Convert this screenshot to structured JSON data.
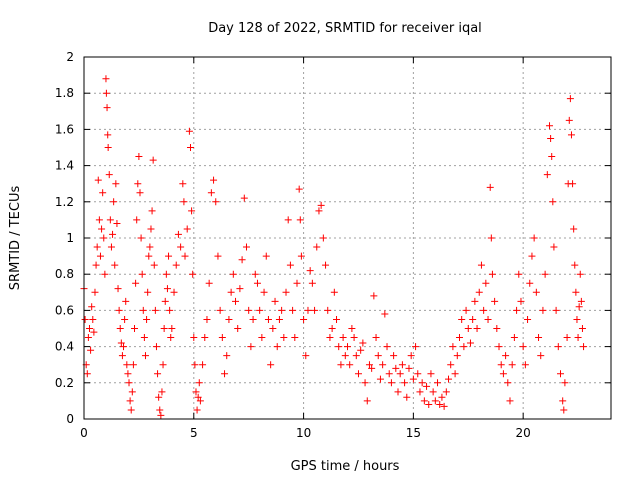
{
  "chart_data": {
    "type": "scatter",
    "title": "Day 128 of 2022, SRMTID for receiver iqal",
    "xlabel": "GPS time / hours",
    "ylabel": "SRMTID / TECUs",
    "xlim": [
      0,
      24
    ],
    "ylim": [
      0,
      2
    ],
    "xticks": [
      0,
      5,
      10,
      15,
      20
    ],
    "yticks": [
      0,
      0.2,
      0.4,
      0.6,
      0.8,
      1,
      1.2,
      1.4,
      1.6,
      1.8,
      2
    ],
    "xtick_labels": [
      "0",
      "5",
      "10",
      "15",
      "20"
    ],
    "ytick_labels": [
      "0",
      "0.2",
      "0.4",
      "0.6",
      "0.8",
      "1",
      "1.2",
      "1.4",
      "1.6",
      "1.8",
      "2"
    ],
    "grid": true,
    "marker": "+",
    "colors": {
      "points": "#ff0000",
      "grid": "#a0a0a0",
      "axes": "#000000"
    },
    "series": [
      {
        "name": "SRMTID",
        "points": [
          [
            0.0,
            0.72
          ],
          [
            0.05,
            0.55
          ],
          [
            0.1,
            0.3
          ],
          [
            0.15,
            0.25
          ],
          [
            0.2,
            0.45
          ],
          [
            0.25,
            0.5
          ],
          [
            0.3,
            0.38
          ],
          [
            0.35,
            0.62
          ],
          [
            0.4,
            0.55
          ],
          [
            0.45,
            0.48
          ],
          [
            0.5,
            0.7
          ],
          [
            0.55,
            0.85
          ],
          [
            0.6,
            0.95
          ],
          [
            0.65,
            1.32
          ],
          [
            0.7,
            1.1
          ],
          [
            0.75,
            0.9
          ],
          [
            0.8,
            1.05
          ],
          [
            0.85,
            1.25
          ],
          [
            0.9,
            1.0
          ],
          [
            0.95,
            0.8
          ],
          [
            1.0,
            1.88
          ],
          [
            1.02,
            1.8
          ],
          [
            1.05,
            1.72
          ],
          [
            1.08,
            1.57
          ],
          [
            1.1,
            1.5
          ],
          [
            1.15,
            1.35
          ],
          [
            1.2,
            1.1
          ],
          [
            1.25,
            0.95
          ],
          [
            1.3,
            1.02
          ],
          [
            1.35,
            1.2
          ],
          [
            1.4,
            0.85
          ],
          [
            1.45,
            1.3
          ],
          [
            1.5,
            1.08
          ],
          [
            1.55,
            0.72
          ],
          [
            1.6,
            0.6
          ],
          [
            1.65,
            0.5
          ],
          [
            1.7,
            0.42
          ],
          [
            1.75,
            0.35
          ],
          [
            1.8,
            0.4
          ],
          [
            1.85,
            0.55
          ],
          [
            1.9,
            0.65
          ],
          [
            1.95,
            0.3
          ],
          [
            2.0,
            0.25
          ],
          [
            2.05,
            0.2
          ],
          [
            2.1,
            0.1
          ],
          [
            2.15,
            0.05
          ],
          [
            2.2,
            0.15
          ],
          [
            2.25,
            0.3
          ],
          [
            2.3,
            0.5
          ],
          [
            2.35,
            0.75
          ],
          [
            2.4,
            1.1
          ],
          [
            2.45,
            1.3
          ],
          [
            2.5,
            1.45
          ],
          [
            2.55,
            1.25
          ],
          [
            2.6,
            1.0
          ],
          [
            2.65,
            0.8
          ],
          [
            2.7,
            0.6
          ],
          [
            2.75,
            0.45
          ],
          [
            2.8,
            0.35
          ],
          [
            2.85,
            0.55
          ],
          [
            2.9,
            0.7
          ],
          [
            2.95,
            0.9
          ],
          [
            3.0,
            0.95
          ],
          [
            3.05,
            1.05
          ],
          [
            3.1,
            1.15
          ],
          [
            3.15,
            1.43
          ],
          [
            3.2,
            0.85
          ],
          [
            3.25,
            0.6
          ],
          [
            3.3,
            0.4
          ],
          [
            3.35,
            0.25
          ],
          [
            3.4,
            0.12
          ],
          [
            3.45,
            0.05
          ],
          [
            3.5,
            0.02
          ],
          [
            3.55,
            0.15
          ],
          [
            3.6,
            0.3
          ],
          [
            3.65,
            0.5
          ],
          [
            3.7,
            0.65
          ],
          [
            3.75,
            0.8
          ],
          [
            3.8,
            0.72
          ],
          [
            3.85,
            0.9
          ],
          [
            3.9,
            0.6
          ],
          [
            3.95,
            0.45
          ],
          [
            4.0,
            0.5
          ],
          [
            4.1,
            0.7
          ],
          [
            4.2,
            0.85
          ],
          [
            4.3,
            1.02
          ],
          [
            4.4,
            0.95
          ],
          [
            4.5,
            1.3
          ],
          [
            4.55,
            1.2
          ],
          [
            4.6,
            0.9
          ],
          [
            4.7,
            1.05
          ],
          [
            4.8,
            1.59
          ],
          [
            4.85,
            1.5
          ],
          [
            4.9,
            1.15
          ],
          [
            4.95,
            0.8
          ],
          [
            5.0,
            0.45
          ],
          [
            5.05,
            0.3
          ],
          [
            5.1,
            0.15
          ],
          [
            5.15,
            0.05
          ],
          [
            5.2,
            0.12
          ],
          [
            5.25,
            0.2
          ],
          [
            5.3,
            0.1
          ],
          [
            5.4,
            0.3
          ],
          [
            5.5,
            0.45
          ],
          [
            5.6,
            0.55
          ],
          [
            5.7,
            0.75
          ],
          [
            5.8,
            1.25
          ],
          [
            5.9,
            1.32
          ],
          [
            6.0,
            1.2
          ],
          [
            6.1,
            0.9
          ],
          [
            6.2,
            0.6
          ],
          [
            6.3,
            0.45
          ],
          [
            6.4,
            0.25
          ],
          [
            6.5,
            0.35
          ],
          [
            6.6,
            0.55
          ],
          [
            6.7,
            0.7
          ],
          [
            6.8,
            0.8
          ],
          [
            6.9,
            0.65
          ],
          [
            7.0,
            0.5
          ],
          [
            7.1,
            0.72
          ],
          [
            7.2,
            0.88
          ],
          [
            7.3,
            1.22
          ],
          [
            7.4,
            0.95
          ],
          [
            7.5,
            0.6
          ],
          [
            7.6,
            0.4
          ],
          [
            7.7,
            0.55
          ],
          [
            7.8,
            0.8
          ],
          [
            7.9,
            0.75
          ],
          [
            8.0,
            0.6
          ],
          [
            8.1,
            0.45
          ],
          [
            8.2,
            0.7
          ],
          [
            8.3,
            0.9
          ],
          [
            8.4,
            0.55
          ],
          [
            8.5,
            0.3
          ],
          [
            8.6,
            0.5
          ],
          [
            8.7,
            0.65
          ],
          [
            8.8,
            0.4
          ],
          [
            8.9,
            0.55
          ],
          [
            9.0,
            0.6
          ],
          [
            9.1,
            0.45
          ],
          [
            9.2,
            0.7
          ],
          [
            9.3,
            1.1
          ],
          [
            9.4,
            0.85
          ],
          [
            9.5,
            0.6
          ],
          [
            9.6,
            0.45
          ],
          [
            9.7,
            0.75
          ],
          [
            9.8,
            1.27
          ],
          [
            9.85,
            1.1
          ],
          [
            9.9,
            0.9
          ],
          [
            10.0,
            0.55
          ],
          [
            10.1,
            0.35
          ],
          [
            10.2,
            0.6
          ],
          [
            10.3,
            0.82
          ],
          [
            10.4,
            0.75
          ],
          [
            10.5,
            0.6
          ],
          [
            10.6,
            0.95
          ],
          [
            10.7,
            1.15
          ],
          [
            10.8,
            1.18
          ],
          [
            10.9,
            1.0
          ],
          [
            11.0,
            0.85
          ],
          [
            11.1,
            0.6
          ],
          [
            11.2,
            0.45
          ],
          [
            11.3,
            0.5
          ],
          [
            11.4,
            0.7
          ],
          [
            11.5,
            0.55
          ],
          [
            11.6,
            0.4
          ],
          [
            11.7,
            0.3
          ],
          [
            11.8,
            0.45
          ],
          [
            11.9,
            0.35
          ],
          [
            12.0,
            0.4
          ],
          [
            12.1,
            0.3
          ],
          [
            12.2,
            0.5
          ],
          [
            12.3,
            0.45
          ],
          [
            12.4,
            0.35
          ],
          [
            12.5,
            0.25
          ],
          [
            12.6,
            0.38
          ],
          [
            12.7,
            0.42
          ],
          [
            12.8,
            0.2
          ],
          [
            12.9,
            0.1
          ],
          [
            13.0,
            0.3
          ],
          [
            13.1,
            0.28
          ],
          [
            13.2,
            0.68
          ],
          [
            13.3,
            0.45
          ],
          [
            13.4,
            0.35
          ],
          [
            13.5,
            0.22
          ],
          [
            13.6,
            0.3
          ],
          [
            13.7,
            0.58
          ],
          [
            13.8,
            0.4
          ],
          [
            13.9,
            0.25
          ],
          [
            14.0,
            0.2
          ],
          [
            14.1,
            0.35
          ],
          [
            14.2,
            0.28
          ],
          [
            14.3,
            0.15
          ],
          [
            14.4,
            0.25
          ],
          [
            14.5,
            0.3
          ],
          [
            14.6,
            0.2
          ],
          [
            14.7,
            0.12
          ],
          [
            14.8,
            0.28
          ],
          [
            14.9,
            0.35
          ],
          [
            15.0,
            0.22
          ],
          [
            15.1,
            0.4
          ],
          [
            15.2,
            0.25
          ],
          [
            15.3,
            0.15
          ],
          [
            15.4,
            0.2
          ],
          [
            15.5,
            0.1
          ],
          [
            15.6,
            0.18
          ],
          [
            15.7,
            0.08
          ],
          [
            15.8,
            0.25
          ],
          [
            15.9,
            0.15
          ],
          [
            16.0,
            0.1
          ],
          [
            16.1,
            0.2
          ],
          [
            16.2,
            0.08
          ],
          [
            16.3,
            0.12
          ],
          [
            16.4,
            0.07
          ],
          [
            16.5,
            0.15
          ],
          [
            16.6,
            0.22
          ],
          [
            16.7,
            0.3
          ],
          [
            16.8,
            0.4
          ],
          [
            16.9,
            0.25
          ],
          [
            17.0,
            0.35
          ],
          [
            17.1,
            0.45
          ],
          [
            17.2,
            0.55
          ],
          [
            17.3,
            0.4
          ],
          [
            17.4,
            0.6
          ],
          [
            17.5,
            0.5
          ],
          [
            17.6,
            0.42
          ],
          [
            17.7,
            0.55
          ],
          [
            17.8,
            0.65
          ],
          [
            17.9,
            0.5
          ],
          [
            18.0,
            0.7
          ],
          [
            18.1,
            0.85
          ],
          [
            18.2,
            0.6
          ],
          [
            18.3,
            0.75
          ],
          [
            18.4,
            0.55
          ],
          [
            18.5,
            1.28
          ],
          [
            18.55,
            1.0
          ],
          [
            18.6,
            0.8
          ],
          [
            18.7,
            0.65
          ],
          [
            18.8,
            0.5
          ],
          [
            18.9,
            0.4
          ],
          [
            19.0,
            0.3
          ],
          [
            19.1,
            0.25
          ],
          [
            19.2,
            0.35
          ],
          [
            19.3,
            0.2
          ],
          [
            19.4,
            0.1
          ],
          [
            19.5,
            0.3
          ],
          [
            19.6,
            0.45
          ],
          [
            19.7,
            0.6
          ],
          [
            19.8,
            0.8
          ],
          [
            19.9,
            0.65
          ],
          [
            20.0,
            0.4
          ],
          [
            20.1,
            0.3
          ],
          [
            20.2,
            0.55
          ],
          [
            20.3,
            0.75
          ],
          [
            20.4,
            0.9
          ],
          [
            20.5,
            1.0
          ],
          [
            20.6,
            0.7
          ],
          [
            20.7,
            0.45
          ],
          [
            20.8,
            0.35
          ],
          [
            20.9,
            0.6
          ],
          [
            21.0,
            0.8
          ],
          [
            21.1,
            1.35
          ],
          [
            21.2,
            1.62
          ],
          [
            21.25,
            1.55
          ],
          [
            21.3,
            1.45
          ],
          [
            21.35,
            1.2
          ],
          [
            21.4,
            0.95
          ],
          [
            21.5,
            0.6
          ],
          [
            21.6,
            0.4
          ],
          [
            21.7,
            0.25
          ],
          [
            21.8,
            0.1
          ],
          [
            21.85,
            0.05
          ],
          [
            21.9,
            0.2
          ],
          [
            22.0,
            0.45
          ],
          [
            22.05,
            1.3
          ],
          [
            22.1,
            1.65
          ],
          [
            22.15,
            1.77
          ],
          [
            22.2,
            1.57
          ],
          [
            22.25,
            1.3
          ],
          [
            22.3,
            1.05
          ],
          [
            22.35,
            0.85
          ],
          [
            22.4,
            0.7
          ],
          [
            22.45,
            0.55
          ],
          [
            22.5,
            0.45
          ],
          [
            22.55,
            0.62
          ],
          [
            22.6,
            0.8
          ],
          [
            22.65,
            0.65
          ],
          [
            22.7,
            0.5
          ],
          [
            22.75,
            0.4
          ]
        ]
      }
    ]
  }
}
